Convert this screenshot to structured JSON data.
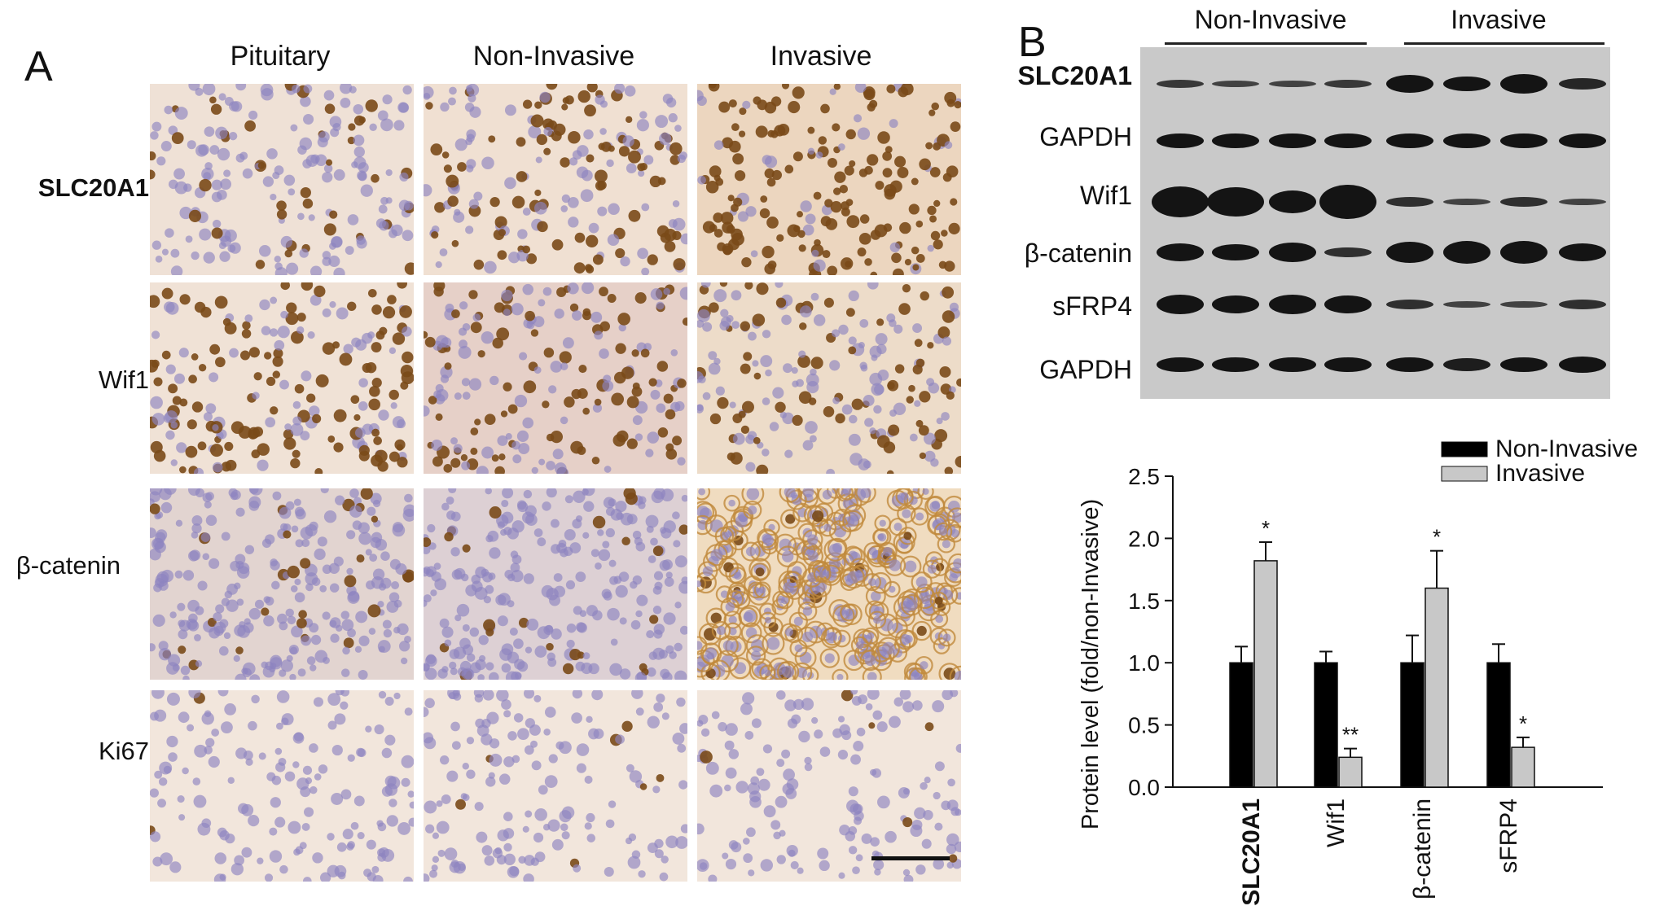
{
  "panel_a": {
    "letter": "A",
    "columns": [
      "Pituitary",
      "Non-Invasive",
      "Invasive"
    ],
    "rows": [
      "SLC20A1",
      "Wif1",
      "β-catenin",
      "Ki67"
    ]
  },
  "panel_b": {
    "letter": "B",
    "groups": [
      "Non-Invasive",
      "Invasive"
    ],
    "blot_rows": [
      "SLC20A1",
      "GAPDH",
      "Wif1",
      "β-catenin",
      "sFRP4",
      "GAPDH"
    ]
  },
  "colors": {
    "non_invasive_bar": "#000000",
    "invasive_bar": "#c8c8c8",
    "dab_brown": "#7a4a18",
    "hematoxylin": "#8e84c0",
    "tissue_bg": "#f1e3d8"
  },
  "chart_data": {
    "type": "bar",
    "categories": [
      "SLC20A1",
      "Wif1",
      "β-catenin",
      "sFRP4"
    ],
    "series": [
      {
        "name": "Non-Invasive",
        "values": [
          1.0,
          1.0,
          1.0,
          1.0
        ],
        "errors": [
          0.13,
          0.09,
          0.22,
          0.15
        ],
        "significance": [
          "",
          "",
          "",
          ""
        ]
      },
      {
        "name": "Invasive",
        "values": [
          1.82,
          0.24,
          1.6,
          0.32
        ],
        "errors": [
          0.15,
          0.07,
          0.3,
          0.08
        ],
        "significance": [
          "*",
          "**",
          "*",
          "*"
        ]
      }
    ],
    "ylabel": "Protein level (fold/non-Invasive)",
    "xlabel": "",
    "ylim": [
      0,
      2.5
    ],
    "yticks": [
      "0.0",
      "0.5",
      "1.0",
      "1.5",
      "2.0",
      "2.5"
    ],
    "grid": false,
    "legend_position": "top-right"
  }
}
